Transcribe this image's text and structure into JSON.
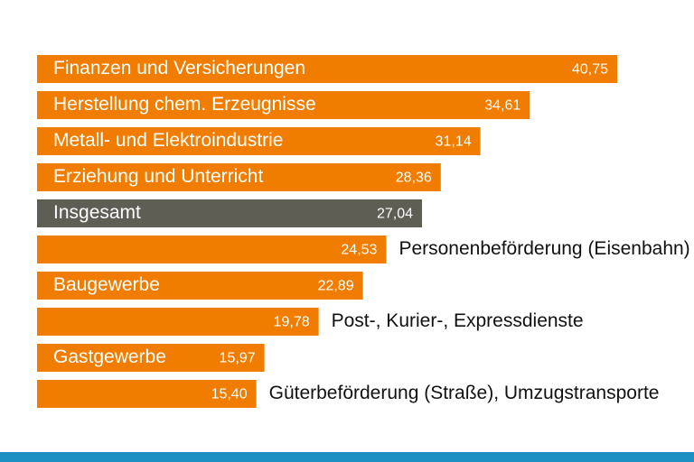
{
  "chart_data": {
    "type": "bar",
    "orientation": "horizontal",
    "categories": [
      "Finanzen und Versicherungen",
      "Herstellung chem. Erzeugnisse",
      "Metall- und Elektroindustrie",
      "Erziehung und Unterricht",
      "Insgesamt",
      "Personenbeförderung (Eisenbahn)",
      "Baugewerbe",
      "Post-, Kurier-, Expressdienste",
      "Gastgewerbe",
      "Güterbeförderung (Straße), Umzugstransporte"
    ],
    "values": [
      40.75,
      34.61,
      31.14,
      28.36,
      27.04,
      24.53,
      22.89,
      19.78,
      15.97,
      15.4
    ],
    "value_labels": [
      "40,75",
      "34,61",
      "31,14",
      "28,36",
      "27,04",
      "24,53",
      "22,89",
      "19,78",
      "15,97",
      "15,40"
    ],
    "colors": [
      "#f07d00",
      "#f07d00",
      "#f07d00",
      "#f07d00",
      "#5e5e55",
      "#f07d00",
      "#f07d00",
      "#f07d00",
      "#f07d00",
      "#f07d00"
    ]
  }
}
